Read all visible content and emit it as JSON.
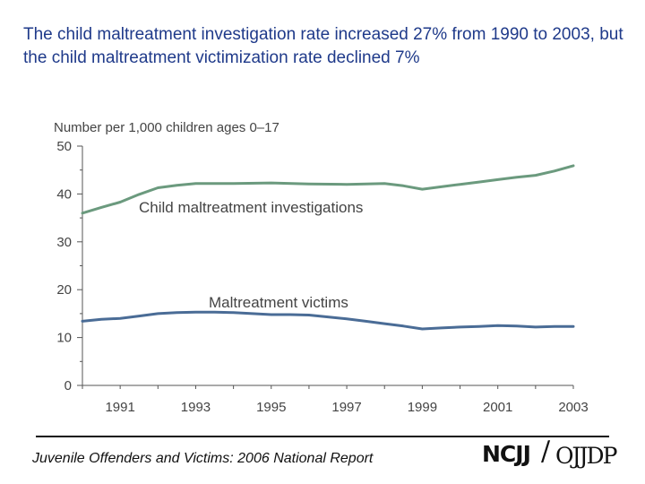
{
  "title": "The child maltreatment investigation rate increased 27% from 1990 to 2003, but the child maltreatment victimization rate declined 7%",
  "footer": {
    "source": "Juvenile Offenders and Victims: 2006 National Report",
    "logo_left": "NCJJ",
    "logo_right": "OJJDP"
  },
  "colors": {
    "investigations": "#6b9a7e",
    "victims": "#4a6c96",
    "axis": "#555555"
  },
  "chart_data": {
    "type": "line",
    "ylabel": "Number per 1,000 children ages 0–17",
    "ylim": [
      0,
      50
    ],
    "yticks": [
      0,
      10,
      20,
      30,
      40,
      50
    ],
    "xlim": [
      1990,
      2003
    ],
    "xticks": [
      1991,
      1993,
      1995,
      1997,
      1999,
      2001,
      2003
    ],
    "grid": false,
    "series": [
      {
        "name": "Child maltreatment investigations",
        "x": [
          1990,
          1990.5,
          1991,
          1991.5,
          1992,
          1992.5,
          1993,
          1994,
          1995,
          1996,
          1997,
          1998,
          1998.5,
          1999,
          1999.5,
          2000,
          2000.5,
          2001,
          2001.5,
          2002,
          2002.5,
          2003
        ],
        "values": [
          36.0,
          37.2,
          38.3,
          39.9,
          41.3,
          41.8,
          42.2,
          42.2,
          42.3,
          42.1,
          42.0,
          42.2,
          41.7,
          41.0,
          41.5,
          42.0,
          42.5,
          43.0,
          43.5,
          43.9,
          44.8,
          45.9
        ]
      },
      {
        "name": "Maltreatment victims",
        "x": [
          1990,
          1990.5,
          1991,
          1991.5,
          1992,
          1992.5,
          1993,
          1993.5,
          1994,
          1994.5,
          1995,
          1995.5,
          1996,
          1996.5,
          1997,
          1997.5,
          1998,
          1998.5,
          1999,
          1999.5,
          2000,
          2000.5,
          2001,
          2001.5,
          2002,
          2002.5,
          2003
        ],
        "values": [
          13.4,
          13.8,
          14.0,
          14.5,
          15.0,
          15.2,
          15.3,
          15.3,
          15.2,
          15.0,
          14.8,
          14.8,
          14.7,
          14.3,
          13.9,
          13.4,
          12.9,
          12.4,
          11.8,
          12.0,
          12.2,
          12.3,
          12.5,
          12.4,
          12.2,
          12.3,
          12.3
        ]
      }
    ]
  }
}
